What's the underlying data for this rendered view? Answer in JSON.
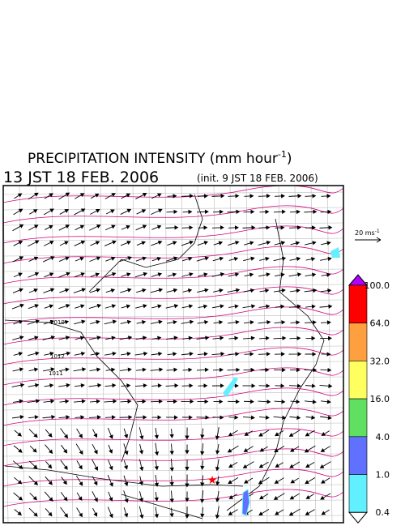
{
  "header": {
    "title": "PRECIPITATION INTENSITY (mm hour",
    "title_sup": "-1",
    "title_end": ")",
    "valid_time": "13 JST 18 FEB. 2006",
    "init_time": "(init. 9 JST 18 FEB. 2006)"
  },
  "wind_scale": {
    "label": "20 ms",
    "sup": "-1"
  },
  "isobar_labels": [
    "1010",
    "1012",
    "1011"
  ],
  "colorbar": {
    "labels": [
      "100.0",
      "64.0",
      "32.0",
      "16.0",
      "4.0",
      "1.0",
      "0.4"
    ],
    "colors": [
      "#ff0000",
      "#ffa040",
      "#ffff60",
      "#60e060",
      "#6070ff",
      "#60f0ff"
    ],
    "over_color": "#b000ff",
    "under_color": "#ffffff"
  }
}
